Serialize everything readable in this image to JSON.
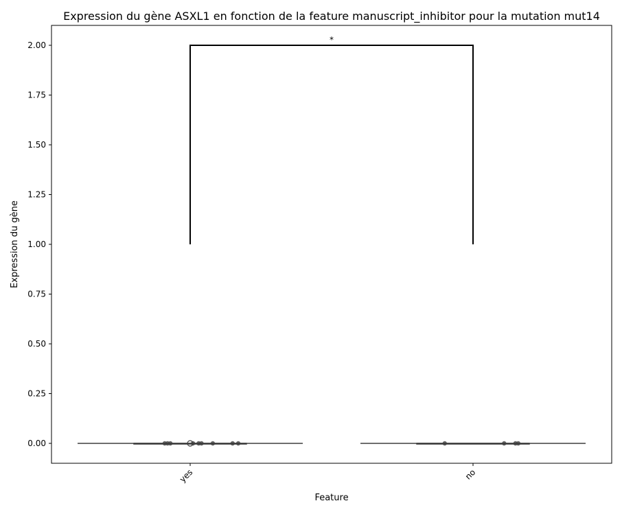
{
  "chart_data": {
    "type": "box",
    "title": "Expression du gène ASXL1 en fonction de la feature manuscript_inhibitor pour la mutation mut14",
    "xlabel": "Feature",
    "ylabel": "Expression du gène",
    "categories": [
      "yes",
      "no"
    ],
    "ylim": [
      -0.1,
      2.1
    ],
    "yticks": [
      0.0,
      0.25,
      0.5,
      0.75,
      1.0,
      1.25,
      1.5,
      1.75,
      2.0
    ],
    "ytick_labels": [
      "0.00",
      "0.25",
      "0.50",
      "0.75",
      "1.00",
      "1.25",
      "1.50",
      "1.75",
      "2.00"
    ],
    "boxes": [
      {
        "category": "yes",
        "min": 0,
        "q1": 0,
        "median": 0,
        "q3": 0,
        "max": 0,
        "outliers": [
          0
        ]
      },
      {
        "category": "no",
        "min": 0,
        "q1": 0,
        "median": 0,
        "q3": 0,
        "max": 0,
        "outliers": []
      }
    ],
    "points": [
      {
        "category": "yes",
        "y": 0,
        "jitter": -0.09
      },
      {
        "category": "yes",
        "y": 0,
        "jitter": -0.08
      },
      {
        "category": "yes",
        "y": 0,
        "jitter": -0.07
      },
      {
        "category": "yes",
        "y": 0,
        "jitter": 0.01
      },
      {
        "category": "yes",
        "y": 0,
        "jitter": 0.03
      },
      {
        "category": "yes",
        "y": 0,
        "jitter": 0.04
      },
      {
        "category": "yes",
        "y": 0,
        "jitter": 0.08
      },
      {
        "category": "yes",
        "y": 0,
        "jitter": 0.15
      },
      {
        "category": "yes",
        "y": 0,
        "jitter": 0.17
      },
      {
        "category": "no",
        "y": 0,
        "jitter": -0.1
      },
      {
        "category": "no",
        "y": 0,
        "jitter": 0.11
      },
      {
        "category": "no",
        "y": 0,
        "jitter": 0.15
      },
      {
        "category": "no",
        "y": 0,
        "jitter": 0.16
      }
    ],
    "significance": {
      "from": "yes",
      "to": "no",
      "y_bottom": 1.0,
      "y_top": 2.0,
      "label": "*"
    },
    "grid": false,
    "legend": "none"
  },
  "colors": {
    "box_line": "#3f3f3f",
    "point": "#3f3f3f",
    "bracket": "#000000",
    "axes": "#000000"
  }
}
